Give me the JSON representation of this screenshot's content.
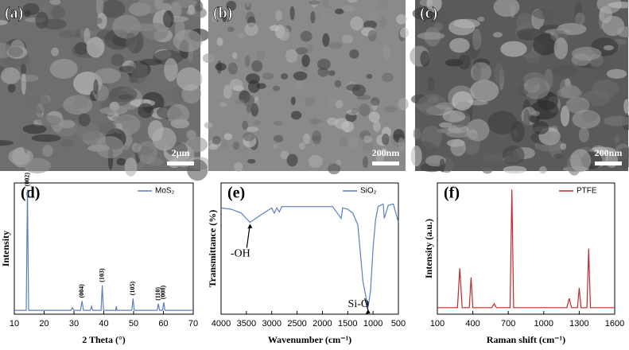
{
  "images": [
    {
      "label": "(a)",
      "scale_bar": "2μm"
    },
    {
      "label": "(b)",
      "scale_bar": "200nm"
    },
    {
      "label": "(c)",
      "scale_bar": "200nm"
    }
  ],
  "chart_data": [
    {
      "type": "line",
      "label": "(d)",
      "xlabel": "2 Theta (°)",
      "ylabel": "Intensity",
      "xlim": [
        10,
        70
      ],
      "xticks": [
        10,
        20,
        30,
        40,
        50,
        60,
        70
      ],
      "ylim": [
        0,
        100
      ],
      "x": [
        10,
        14,
        14.4,
        14.8,
        20,
        29,
        29.5,
        30,
        32.2,
        32.7,
        33.2,
        35.5,
        35.9,
        36.3,
        39.1,
        39.5,
        39.9,
        44,
        44.2,
        44.4,
        49.4,
        49.8,
        50.2,
        57.9,
        58.3,
        58.7,
        59.7,
        60.1,
        60.5,
        70
      ],
      "series": [
        {
          "name": "MoS₂",
          "color": "#5b7fc0",
          "values": [
            3,
            3,
            95,
            3,
            3,
            3,
            5,
            3,
            3,
            10,
            3,
            3,
            6,
            3,
            3,
            22,
            3,
            3,
            6,
            3,
            3,
            12,
            3,
            3,
            8,
            3,
            3,
            9,
            3,
            3
          ]
        }
      ],
      "annotations": [
        {
          "text": "(002)",
          "x": 14.4,
          "y": 95
        },
        {
          "text": "(004)",
          "x": 32.7,
          "y": 10
        },
        {
          "text": "(103)",
          "x": 39.5,
          "y": 22
        },
        {
          "text": "(105)",
          "x": 49.8,
          "y": 12
        },
        {
          "text": "(110)",
          "x": 58.3,
          "y": 8
        },
        {
          "text": "(008)",
          "x": 60.1,
          "y": 9
        }
      ]
    },
    {
      "type": "line",
      "label": "(e)",
      "xlabel": "Wavenumber (cm⁻¹)",
      "ylabel": "Transmittance (%)",
      "xlim": [
        4000,
        500
      ],
      "xticks": [
        4000,
        3500,
        3000,
        2500,
        2000,
        1500,
        1000,
        500
      ],
      "ylim": [
        0,
        100
      ],
      "x": [
        4000,
        3800,
        3600,
        3430,
        3200,
        3000,
        2950,
        2900,
        2850,
        2800,
        2000,
        1800,
        1630,
        1600,
        1500,
        1400,
        1300,
        1200,
        1100,
        1050,
        1000,
        950,
        900,
        800,
        780,
        700,
        600,
        500
      ],
      "series": [
        {
          "name": "SiO₂",
          "color": "#5b7fc0",
          "values": [
            81,
            80,
            77,
            70,
            76,
            81,
            77,
            81,
            78,
            82,
            82,
            82,
            73,
            81,
            80,
            77,
            68,
            25,
            5,
            18,
            50,
            72,
            82,
            84,
            73,
            83,
            84,
            70
          ]
        }
      ],
      "annotations": [
        {
          "text": "-OH",
          "x": 3430,
          "y": 70
        },
        {
          "text": "Si-O",
          "x": 1100,
          "y": 5
        }
      ]
    },
    {
      "type": "line",
      "label": "(f)",
      "xlabel": "Raman shift (cm⁻¹)",
      "ylabel": "Intensity (a.u.)",
      "xlim": [
        100,
        1600
      ],
      "xticks": [
        100,
        400,
        700,
        1000,
        1300,
        1600
      ],
      "ylim": [
        0,
        100
      ],
      "x": [
        100,
        270,
        290,
        310,
        370,
        385,
        400,
        560,
        580,
        600,
        715,
        730,
        745,
        1195,
        1215,
        1235,
        1285,
        1300,
        1315,
        1365,
        1380,
        1395,
        1600
      ],
      "series": [
        {
          "name": "PTFE",
          "color": "#c0282d",
          "values": [
            5,
            5,
            35,
            5,
            5,
            28,
            5,
            5,
            8,
            5,
            5,
            95,
            5,
            5,
            12,
            5,
            5,
            20,
            5,
            5,
            50,
            5,
            5
          ]
        }
      ],
      "annotations": []
    }
  ]
}
